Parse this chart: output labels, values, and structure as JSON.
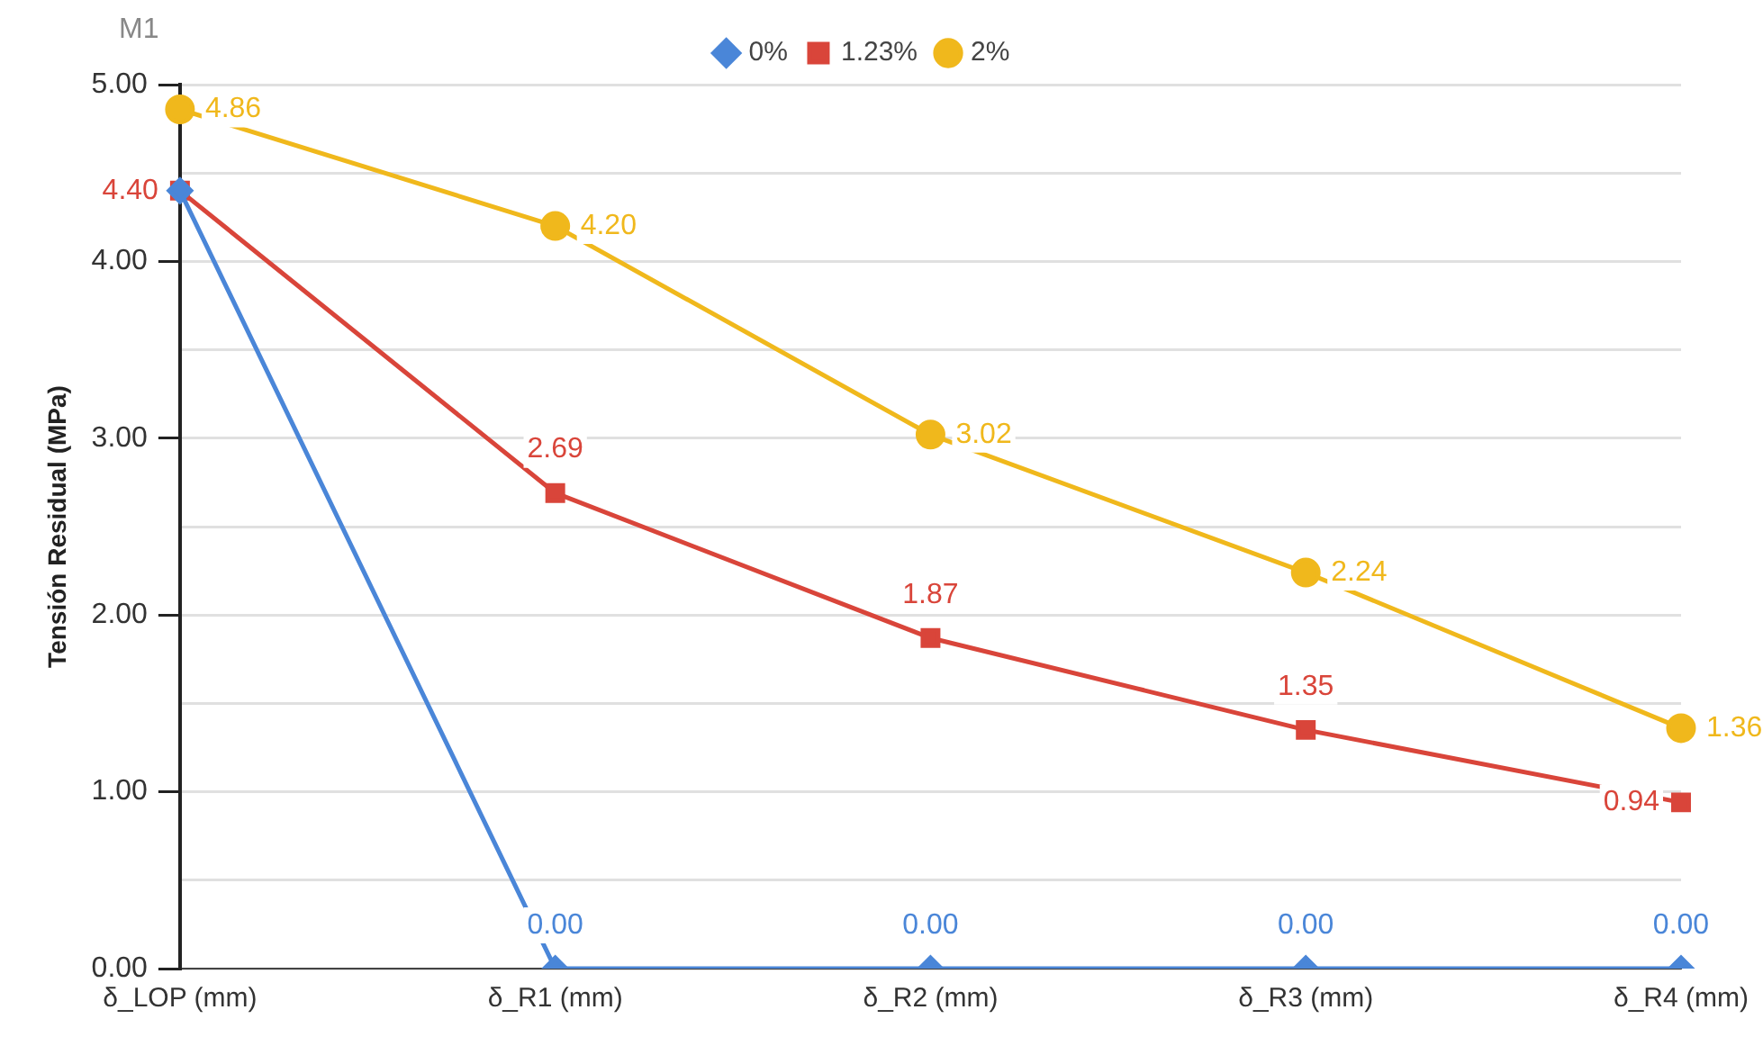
{
  "chart_data": {
    "type": "line",
    "title": "M1",
    "ylabel": "Tensión Residual (MPa)",
    "categories": [
      "δ_LOP (mm)",
      "δ_R1 (mm)",
      "δ_R2 (mm)",
      "δ_R3 (mm)",
      "δ_R4 (mm)"
    ],
    "series": [
      {
        "name": "0%",
        "color": "#4a86d8",
        "marker": "diamond",
        "values": [
          4.4,
          0.0,
          0.0,
          0.0,
          0.0
        ],
        "value_labels": [
          null,
          "0.00",
          "0.00",
          "0.00",
          "0.00"
        ]
      },
      {
        "name": "1.23%",
        "color": "#d9453a",
        "marker": "square",
        "values": [
          4.4,
          2.69,
          1.87,
          1.35,
          0.94
        ],
        "value_labels": [
          "4.40",
          "2.69",
          "1.87",
          "1.35",
          "0.94"
        ]
      },
      {
        "name": "2%",
        "color": "#f0b81c",
        "marker": "circle",
        "values": [
          4.86,
          4.2,
          3.02,
          2.24,
          1.36
        ],
        "value_labels": [
          "4.86",
          "4.20",
          "3.02",
          "2.24",
          "1.36"
        ]
      }
    ],
    "ylim": [
      0,
      5
    ],
    "yticks": [
      {
        "value": 0,
        "label": "0.00"
      },
      {
        "value": 0.5,
        "label": null
      },
      {
        "value": 1,
        "label": "1.00"
      },
      {
        "value": 1.5,
        "label": null
      },
      {
        "value": 2,
        "label": "2.00"
      },
      {
        "value": 2.5,
        "label": null
      },
      {
        "value": 3,
        "label": "3.00"
      },
      {
        "value": 3.5,
        "label": null
      },
      {
        "value": 4,
        "label": "4.00"
      },
      {
        "value": 4.5,
        "label": null
      },
      {
        "value": 5,
        "label": "5.00"
      }
    ],
    "grid": "y",
    "legend": "top"
  }
}
